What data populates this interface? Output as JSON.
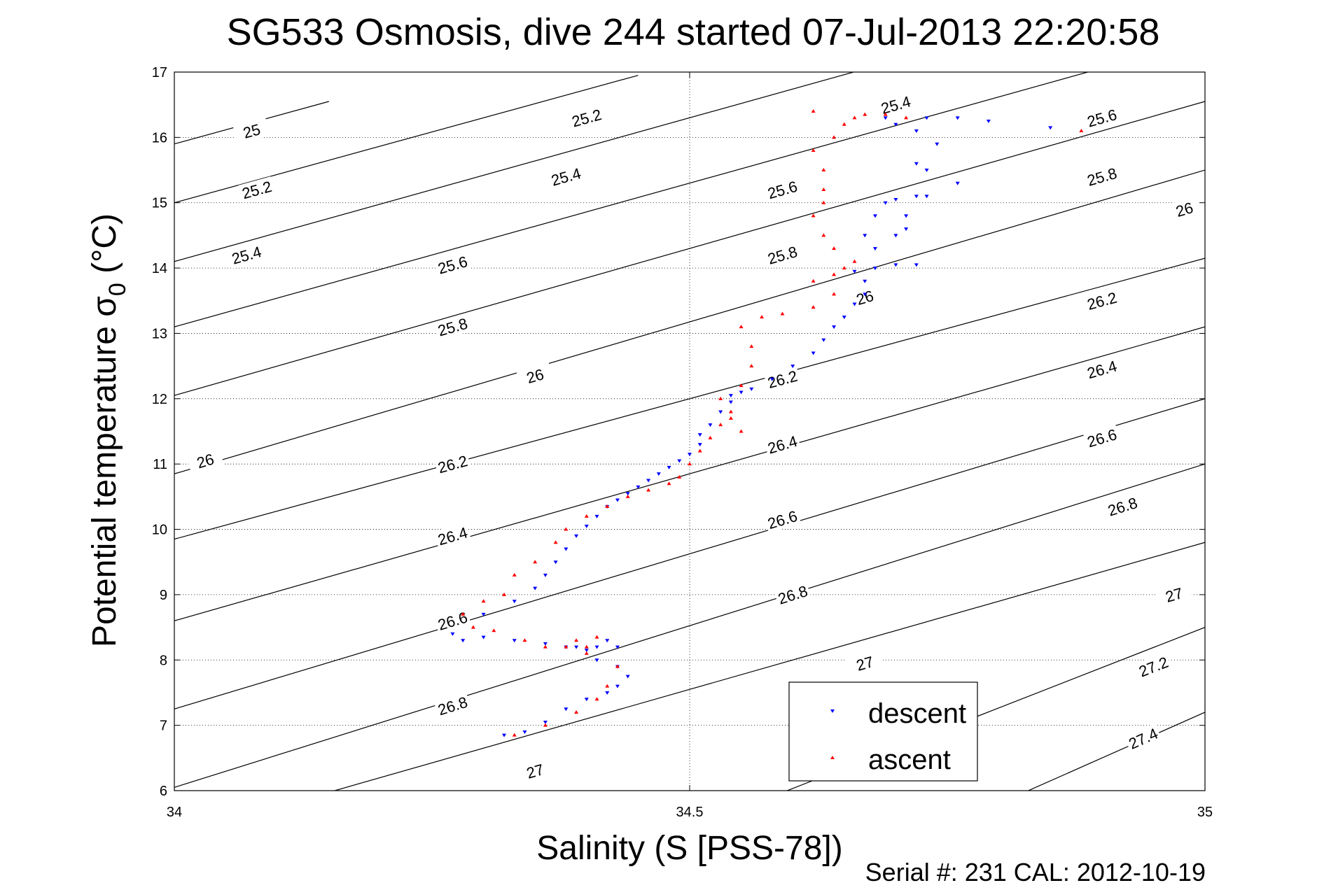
{
  "chart_data": {
    "type": "scatter",
    "title": "SG533 Osmosis, dive 244 started 07-Jul-2013 22:20:58",
    "xlabel": "Salinity (S [PSS-78])",
    "ylabel_main": "Potential temperature σ",
    "ylabel_sub": "0",
    "ylabel_unit": " (°C)",
    "footer": "Serial #: 231  CAL: 2012-10-19",
    "xlim": [
      34,
      35
    ],
    "ylim": [
      6,
      17
    ],
    "grid": true,
    "x_ticks": [
      {
        "value": 34,
        "label": "34"
      },
      {
        "value": 34.5,
        "label": "34.5"
      },
      {
        "value": 35,
        "label": "35"
      }
    ],
    "y_ticks": [
      {
        "value": 6,
        "label": "6"
      },
      {
        "value": 7,
        "label": "7"
      },
      {
        "value": 8,
        "label": "8"
      },
      {
        "value": 9,
        "label": "9"
      },
      {
        "value": 10,
        "label": "10"
      },
      {
        "value": 11,
        "label": "11"
      },
      {
        "value": 12,
        "label": "12"
      },
      {
        "value": 13,
        "label": "13"
      },
      {
        "value": 14,
        "label": "14"
      },
      {
        "value": 15,
        "label": "15"
      },
      {
        "value": 16,
        "label": "16"
      },
      {
        "value": 17,
        "label": "17"
      }
    ],
    "isopycnals": [
      {
        "label": "25",
        "s0": 34.0,
        "t0": 15.9,
        "s1": 34.15,
        "t1": 16.55,
        "labels": [
          [
            34.075,
            16.1
          ]
        ]
      },
      {
        "label": "25.2",
        "s0": 34.0,
        "t0": 15.0,
        "s1": 34.45,
        "t1": 16.95,
        "labels": [
          [
            34.08,
            15.2
          ],
          [
            34.4,
            16.3
          ]
        ]
      },
      {
        "label": "25.4",
        "s0": 34.0,
        "t0": 14.1,
        "s1": 35.0,
        "t1": 18.5,
        "labels": [
          [
            34.07,
            14.2
          ],
          [
            34.38,
            15.4
          ],
          [
            34.7,
            16.5
          ]
        ]
      },
      {
        "label": "25.6",
        "s0": 34.0,
        "t0": 13.1,
        "s1": 35.0,
        "t1": 17.5,
        "labels": [
          [
            34.27,
            14.05
          ],
          [
            34.59,
            15.2
          ],
          [
            34.9,
            16.3
          ]
        ]
      },
      {
        "label": "25.8",
        "s0": 34.0,
        "t0": 12.05,
        "s1": 35.0,
        "t1": 16.55,
        "labels": [
          [
            34.27,
            13.1
          ],
          [
            34.59,
            14.2
          ],
          [
            34.9,
            15.4
          ]
        ]
      },
      {
        "label": "26",
        "s0": 34.0,
        "t0": 10.85,
        "s1": 35.0,
        "t1": 15.5,
        "labels": [
          [
            34.03,
            11.05
          ],
          [
            34.35,
            12.35
          ],
          [
            34.67,
            13.55
          ],
          [
            34.98,
            14.9
          ]
        ]
      },
      {
        "label": "26.2",
        "s0": 34.0,
        "t0": 9.85,
        "s1": 35.0,
        "t1": 14.15,
        "labels": [
          [
            34.27,
            11.0
          ],
          [
            34.59,
            12.3
          ],
          [
            34.9,
            13.5
          ]
        ]
      },
      {
        "label": "26.4",
        "s0": 34.0,
        "t0": 8.6,
        "s1": 35.0,
        "t1": 13.1,
        "labels": [
          [
            34.27,
            9.9
          ],
          [
            34.59,
            11.3
          ],
          [
            34.9,
            12.45
          ]
        ]
      },
      {
        "label": "26.6",
        "s0": 34.0,
        "t0": 7.25,
        "s1": 35.0,
        "t1": 12.0,
        "labels": [
          [
            34.27,
            8.6
          ],
          [
            34.59,
            10.15
          ],
          [
            34.9,
            11.4
          ]
        ]
      },
      {
        "label": "26.8",
        "s0": 34.0,
        "t0": 6.05,
        "s1": 35.0,
        "t1": 11.0,
        "labels": [
          [
            34.27,
            7.3
          ],
          [
            34.6,
            9.0
          ],
          [
            34.92,
            10.35
          ]
        ]
      },
      {
        "label": "27",
        "s0": 34.0,
        "t0": 5.3,
        "s1": 35.0,
        "t1": 9.8,
        "labels": [
          [
            34.35,
            6.3
          ],
          [
            34.67,
            7.95
          ],
          [
            34.97,
            9.0
          ]
        ]
      },
      {
        "label": "27.2",
        "s0": 34.4,
        "t0": 4.8,
        "s1": 35.0,
        "t1": 8.5,
        "labels": [
          [
            34.95,
            7.9
          ]
        ]
      },
      {
        "label": "27.4",
        "s0": 34.7,
        "t0": 5.1,
        "s1": 35.0,
        "t1": 7.2,
        "labels": [
          [
            34.94,
            6.8
          ]
        ]
      }
    ],
    "series": [
      {
        "name": "descent",
        "color": "#0000ff",
        "marker": "triangle-down",
        "x": [
          34.32,
          34.34,
          34.36,
          34.38,
          34.4,
          34.42,
          34.43,
          34.44,
          34.43,
          34.41,
          34.4,
          34.42,
          34.43,
          34.41,
          34.39,
          34.38,
          34.36,
          34.33,
          34.3,
          34.28,
          34.27,
          34.3,
          34.33,
          34.35,
          34.36,
          34.37,
          34.38,
          34.39,
          34.4,
          34.41,
          34.42,
          34.43,
          34.44,
          34.45,
          34.46,
          34.47,
          34.48,
          34.49,
          34.5,
          34.51,
          34.51,
          34.52,
          34.53,
          34.54,
          34.54,
          34.55,
          34.56,
          34.58,
          34.6,
          34.62,
          34.63,
          34.64,
          34.65,
          34.66,
          34.67,
          34.67,
          34.66,
          34.68,
          34.7,
          34.72,
          34.68,
          34.67,
          34.68,
          34.69,
          34.7,
          34.72,
          34.71,
          34.7,
          34.71,
          34.73,
          34.76,
          34.73,
          34.72,
          34.74,
          34.72,
          34.7,
          34.69,
          34.73,
          34.76,
          34.79,
          34.85
        ],
        "y": [
          6.85,
          6.9,
          7.05,
          7.25,
          7.4,
          7.5,
          7.6,
          7.75,
          7.9,
          8.0,
          8.15,
          8.3,
          8.2,
          8.2,
          8.2,
          8.2,
          8.25,
          8.3,
          8.35,
          8.3,
          8.4,
          8.7,
          8.9,
          9.1,
          9.3,
          9.5,
          9.7,
          9.9,
          10.05,
          10.2,
          10.35,
          10.45,
          10.55,
          10.65,
          10.75,
          10.85,
          10.95,
          11.05,
          11.15,
          11.3,
          11.45,
          11.6,
          11.8,
          11.95,
          12.05,
          12.1,
          12.15,
          12.3,
          12.5,
          12.7,
          12.9,
          13.1,
          13.25,
          13.45,
          13.6,
          13.8,
          13.95,
          14.0,
          14.05,
          14.05,
          14.3,
          14.5,
          14.8,
          15.0,
          15.05,
          15.1,
          14.6,
          14.5,
          14.8,
          15.1,
          15.3,
          15.5,
          15.6,
          15.9,
          16.1,
          16.2,
          16.3,
          16.3,
          16.3,
          16.25,
          16.15
        ]
      },
      {
        "name": "ascent",
        "color": "#ff0000",
        "marker": "triangle-up",
        "x": [
          34.33,
          34.36,
          34.39,
          34.41,
          34.42,
          34.43,
          34.4,
          34.39,
          34.41,
          34.4,
          34.38,
          34.36,
          34.34,
          34.31,
          34.29,
          34.28,
          34.3,
          34.32,
          34.33,
          34.35,
          34.37,
          34.38,
          34.4,
          34.42,
          34.44,
          34.46,
          34.48,
          34.49,
          34.5,
          34.51,
          34.52,
          34.53,
          34.54,
          34.55,
          34.54,
          34.53,
          34.55,
          34.56,
          34.56,
          34.55,
          34.57,
          34.59,
          34.62,
          34.64,
          34.62,
          34.64,
          34.65,
          34.66,
          34.64,
          34.63,
          34.62,
          34.63,
          34.63,
          34.63,
          34.62,
          34.64,
          34.65,
          34.66,
          34.67,
          34.69,
          34.71,
          34.62,
          34.88
        ],
        "y": [
          6.85,
          7.0,
          7.2,
          7.4,
          7.6,
          7.9,
          8.1,
          8.3,
          8.35,
          8.2,
          8.2,
          8.2,
          8.3,
          8.45,
          8.5,
          8.7,
          8.9,
          9.0,
          9.3,
          9.5,
          9.8,
          10.0,
          10.2,
          10.35,
          10.5,
          10.6,
          10.7,
          10.8,
          11.0,
          11.2,
          11.4,
          11.6,
          11.7,
          11.5,
          11.8,
          12.0,
          12.2,
          12.5,
          12.8,
          13.1,
          13.25,
          13.3,
          13.4,
          13.6,
          13.8,
          13.9,
          14.0,
          14.1,
          14.3,
          14.5,
          14.8,
          15.0,
          15.2,
          15.5,
          15.8,
          16.0,
          16.2,
          16.3,
          16.35,
          16.35,
          16.3,
          16.4,
          16.1
        ]
      }
    ],
    "legend": {
      "position": "lower-right",
      "entries": [
        "descent",
        "ascent"
      ]
    }
  }
}
